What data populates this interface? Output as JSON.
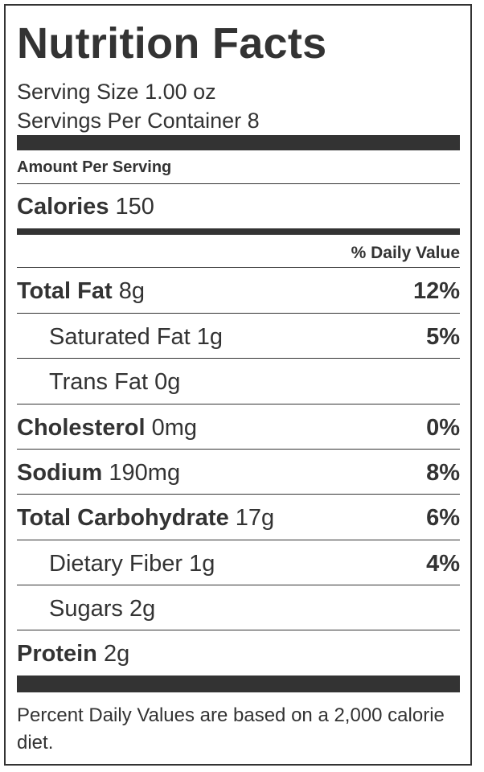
{
  "title": "Nutrition Facts",
  "serving_size": "Serving Size 1.00 oz",
  "servings_per_container": "Servings Per Container 8",
  "amount_per_serving": "Amount Per Serving",
  "calories": {
    "label": "Calories",
    "value": "150"
  },
  "daily_value_header": "% Daily Value",
  "nutrients": [
    {
      "label": "Total Fat",
      "amount": "8g",
      "percent": "12%"
    },
    {
      "label": "Saturated Fat",
      "amount": "1g",
      "percent": "5%"
    },
    {
      "label": "Trans Fat",
      "amount": "0g",
      "percent": ""
    },
    {
      "label": "Cholesterol",
      "amount": "0mg",
      "percent": "0%"
    },
    {
      "label": "Sodium",
      "amount": "190mg",
      "percent": "8%"
    },
    {
      "label": "Total Carbohydrate",
      "amount": "17g",
      "percent": "6%"
    },
    {
      "label": "Dietary Fiber",
      "amount": "1g",
      "percent": "4%"
    },
    {
      "label": "Sugars",
      "amount": "2g",
      "percent": ""
    },
    {
      "label": "Protein",
      "amount": "2g",
      "percent": ""
    }
  ],
  "footnote": "Percent Daily Values are based on a 2,000 calorie diet."
}
